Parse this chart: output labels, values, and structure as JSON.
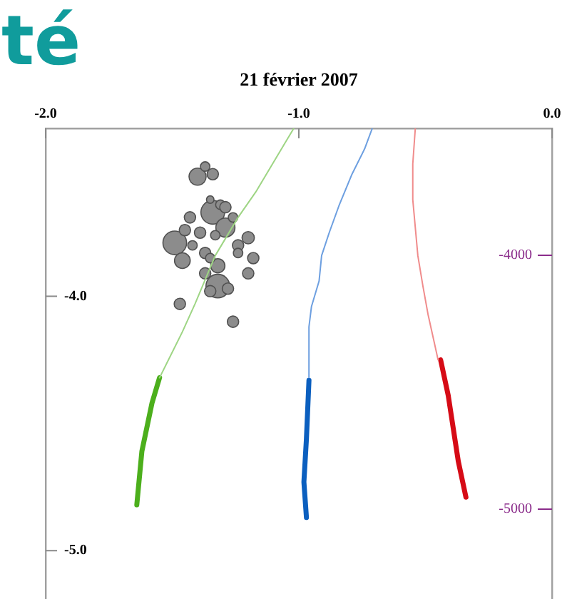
{
  "chart_data": {
    "type": "line",
    "title": "21 février 2007",
    "annotations": [
      "té"
    ],
    "xlim": [
      -2,
      0
    ],
    "xticks": [
      {
        "value": -2,
        "label": "-2.0"
      },
      {
        "value": -1,
        "label": "-1.0"
      },
      {
        "value": 0,
        "label": "0.0"
      }
    ],
    "ylim": [
      -5.19,
      -3.34
    ],
    "yticks": [
      {
        "value": -4,
        "label": "-4.0"
      },
      {
        "value": -5,
        "label": "-5.0"
      }
    ],
    "y2lim": [
      -5354,
      -3500
    ],
    "y2ticks": [
      -4000,
      -5000
    ],
    "grid": false,
    "legend": false,
    "series": [
      {
        "marker": "none",
        "color": "#9ed584",
        "x": [
          -1.02,
          -1.05,
          -1.17,
          -1.24,
          -1.33,
          -1.41,
          -1.46,
          -1.55
        ],
        "values": [
          -3.34,
          -3.39,
          -3.59,
          -3.69,
          -3.84,
          -4.03,
          -4.14,
          -4.32
        ]
      },
      {
        "marker": "none",
        "color": "#4caf1c",
        "x": [
          -1.55,
          -1.58,
          -1.62,
          -1.64
        ],
        "values": [
          -4.32,
          -4.42,
          -4.61,
          -4.82
        ]
      },
      {
        "marker": "none",
        "color": "#6d9fe0",
        "x": [
          -0.71,
          -0.74,
          -0.79,
          -0.84,
          -0.88,
          -0.91,
          -0.92,
          -0.95,
          -0.96,
          -0.96
        ],
        "values": [
          -3.34,
          -3.42,
          -3.52,
          -3.64,
          -3.75,
          -3.84,
          -3.94,
          -4.04,
          -4.12,
          -4.32
        ]
      },
      {
        "marker": "none",
        "color": "#0b5fbf",
        "x": [
          -0.96,
          -0.97,
          -0.98,
          -0.97
        ],
        "values": [
          -4.33,
          -4.56,
          -4.73,
          -4.87
        ]
      },
      {
        "marker": "none",
        "color": "#f08c8c",
        "x": [
          -0.54,
          -0.55,
          -0.55,
          -0.54,
          -0.53,
          -0.51,
          -0.49,
          -0.47,
          -0.45
        ],
        "values": [
          -3.34,
          -3.48,
          -3.62,
          -3.73,
          -3.84,
          -3.96,
          -4.07,
          -4.16,
          -4.25
        ]
      },
      {
        "marker": "none",
        "color": "#d60b16",
        "x": [
          -0.44,
          -0.41,
          -0.39,
          -0.37,
          -0.34
        ],
        "values": [
          -4.25,
          -4.39,
          -4.52,
          -4.65,
          -4.79
        ]
      },
      {
        "type": "bubble",
        "color": "#8c8c8c",
        "x": [
          -1.4,
          -1.34,
          -1.37,
          -1.34,
          -1.29,
          -1.49,
          -1.43,
          -1.45,
          -1.39,
          -1.2,
          -1.24,
          -1.18,
          -1.46,
          -1.37,
          -1.32,
          -1.37,
          -1.32,
          -1.35,
          -1.28,
          -1.2,
          -1.47,
          -1.26,
          -1.42,
          -1.26,
          -1.31,
          -1.35,
          -1.24,
          -1.35,
          -1.29,
          -1.33
        ],
        "values": [
          -3.53,
          -3.52,
          -3.49,
          -3.67,
          -3.73,
          -3.79,
          -3.69,
          -3.74,
          -3.75,
          -3.77,
          -3.8,
          -3.85,
          -3.86,
          -3.83,
          -3.88,
          -3.91,
          -3.96,
          -3.98,
          -3.97,
          -3.91,
          -4.03,
          -4.1,
          -3.8,
          -3.69,
          -3.64,
          -3.62,
          -3.83,
          -3.85,
          -3.65,
          -3.76
        ],
        "sizes": [
          0.52,
          0.23,
          0.16,
          1,
          0.65,
          1,
          0.23,
          0.23,
          0.23,
          0.27,
          0.23,
          0.23,
          0.44,
          0.23,
          0.36,
          0.23,
          1,
          0.23,
          0.23,
          0.23,
          0.23,
          0.23,
          0.16,
          0.16,
          0.16,
          0.1,
          0.16,
          0.16,
          0.23,
          0.16
        ]
      }
    ]
  }
}
